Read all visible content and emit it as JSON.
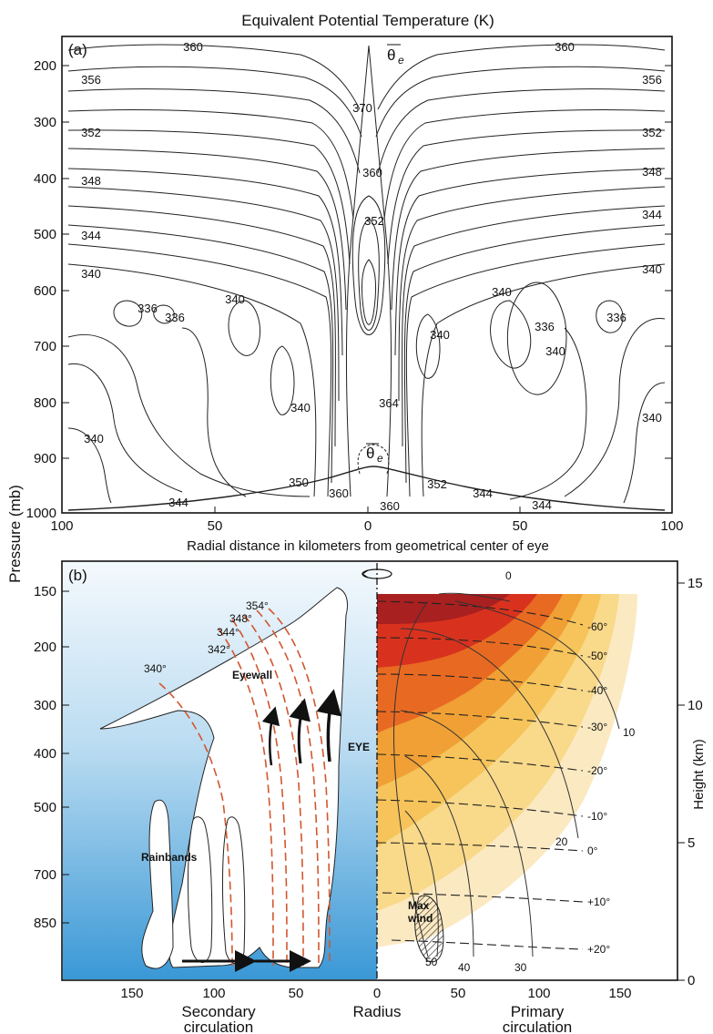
{
  "panel_a": {
    "title": "Equivalent Potential Temperature (K)",
    "label": "(a)",
    "xlabel": "Radial distance in kilometers from geometrical center of eye",
    "x_ticks": [
      "100",
      "50",
      "0",
      "50",
      "100"
    ],
    "y_ticks": [
      "200",
      "300",
      "400",
      "500",
      "600",
      "700",
      "800",
      "900",
      "1000"
    ],
    "theta_e_symbol": "θ",
    "theta_e_sub": "e",
    "contour_labels": [
      "360",
      "356",
      "352",
      "348",
      "344",
      "340",
      "336",
      "336",
      "340",
      "340",
      "340",
      "360",
      "356",
      "352",
      "348",
      "344",
      "340",
      "340",
      "336",
      "336",
      "340",
      "340",
      "370",
      "360",
      "352",
      "364",
      "350",
      "360",
      "360",
      "352",
      "344",
      "344",
      "344",
      "340"
    ]
  },
  "shared": {
    "ylabel": "Pressure (mb)"
  },
  "panel_b": {
    "label": "(b)",
    "y_ticks": [
      "150",
      "200",
      "300",
      "400",
      "500",
      "700",
      "850"
    ],
    "x_ticks": [
      "150",
      "100",
      "50",
      "0",
      "50",
      "100",
      "150"
    ],
    "height_label": "Height (km)",
    "height_ticks": [
      "15",
      "10",
      "5",
      "0"
    ],
    "radius_label": "Radius",
    "secondary_label_1": "Secondary",
    "secondary_label_2": "circulation",
    "primary_label_1": "Primary",
    "primary_label_2": "circulation",
    "eyewall_label": "Eyewall",
    "eye_label": "EYE",
    "rainbands_label": "Rainbands",
    "maxwind_label_1": "Max",
    "maxwind_label_2": "wind",
    "theta_labels": [
      "340°",
      "342°",
      "344°",
      "348°",
      "354°"
    ],
    "temp_labels": [
      "-60°",
      "-50°",
      "-40°",
      "-30°",
      "-20°",
      "-10°",
      "0°",
      "+10°",
      "+20°"
    ],
    "wind_labels": [
      "0",
      "10",
      "20",
      "30",
      "40",
      "50"
    ],
    "colors": {
      "sky_top": "#f4f9fd",
      "sky_bottom": "#3a98d6",
      "warm_1": "#f9e3b0",
      "warm_2": "#f6c45a",
      "warm_3": "#f0a035",
      "warm_4": "#e86a22",
      "warm_5": "#d8321e",
      "warm_6": "#a82020",
      "theta_lines": "#d2562e"
    }
  }
}
